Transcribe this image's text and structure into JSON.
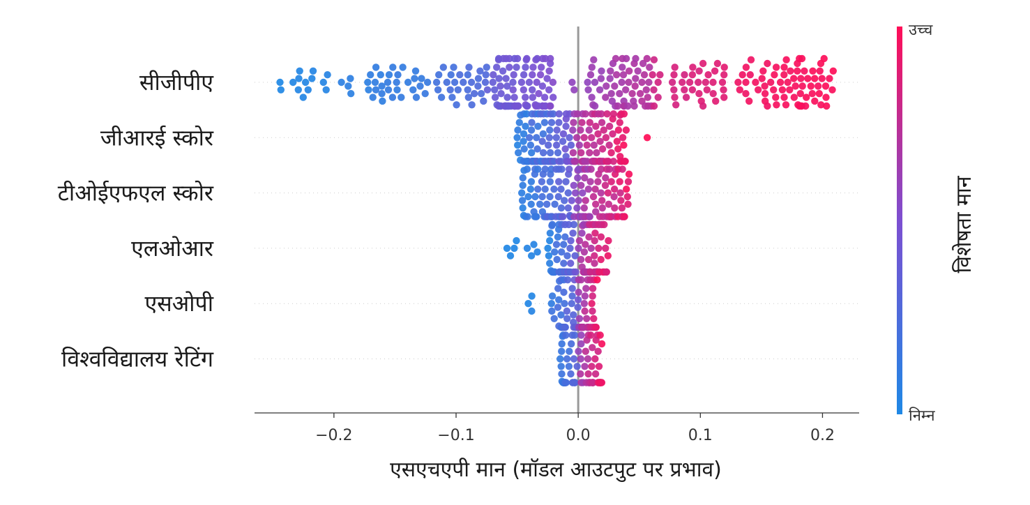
{
  "chart_data": {
    "type": "scatter",
    "subtype": "shap-beeswarm",
    "xlabel": "एसएचएपी मान (मॉडल आउटपुट पर प्रभाव)",
    "xlim": [
      -0.265,
      0.23
    ],
    "xticks": [
      -0.2,
      -0.1,
      0.0,
      0.1,
      0.2
    ],
    "xtick_labels": [
      "−0.2",
      "−0.1",
      "0.0",
      "0.1",
      "0.2"
    ],
    "grid": false,
    "features": [
      {
        "name": "सीजीपीए",
        "spread": 0.012,
        "segments": [
          {
            "from": -0.245,
            "to": -0.205,
            "n": 14,
            "c_from": 0.0,
            "c_to": 0.05
          },
          {
            "from": -0.195,
            "to": -0.12,
            "n": 34,
            "c_from": 0.05,
            "c_to": 0.15
          },
          {
            "from": -0.12,
            "to": -0.075,
            "n": 30,
            "c_from": 0.15,
            "c_to": 0.3
          },
          {
            "from": -0.075,
            "to": -0.02,
            "n": 90,
            "c_from": 0.35,
            "c_to": 0.55
          },
          {
            "from": -0.005,
            "to": 0.06,
            "n": 60,
            "c_from": 0.55,
            "c_to": 0.75
          },
          {
            "from": 0.06,
            "to": 0.12,
            "n": 40,
            "c_from": 0.8,
            "c_to": 0.9
          },
          {
            "from": 0.13,
            "to": 0.21,
            "n": 70,
            "c_from": 0.93,
            "c_to": 1.0
          }
        ]
      },
      {
        "name": "जीआरई स्कोर",
        "spread": 0.015,
        "segments": [
          {
            "from": -0.05,
            "to": -0.005,
            "n": 95,
            "c_from": 0.0,
            "c_to": 0.5
          },
          {
            "from": -0.005,
            "to": 0.04,
            "n": 90,
            "c_from": 0.6,
            "c_to": 1.0
          },
          {
            "from": 0.055,
            "to": 0.058,
            "n": 1,
            "c_from": 1.0,
            "c_to": 1.0
          }
        ]
      },
      {
        "name": "टीओईएफएल स्कोर",
        "spread": 0.015,
        "segments": [
          {
            "from": -0.048,
            "to": -0.005,
            "n": 70,
            "c_from": 0.0,
            "c_to": 0.45
          },
          {
            "from": -0.005,
            "to": 0.042,
            "n": 85,
            "c_from": 0.5,
            "c_to": 1.0
          }
        ]
      },
      {
        "name": "एलओआर",
        "spread": 0.016,
        "segments": [
          {
            "from": -0.06,
            "to": -0.03,
            "n": 8,
            "c_from": 0.0,
            "c_to": 0.05
          },
          {
            "from": -0.025,
            "to": -0.002,
            "n": 55,
            "c_from": 0.0,
            "c_to": 0.45
          },
          {
            "from": 0.0,
            "to": 0.025,
            "n": 60,
            "c_from": 0.55,
            "c_to": 1.0
          }
        ]
      },
      {
        "name": "एसओपी",
        "spread": 0.016,
        "segments": [
          {
            "from": -0.044,
            "to": -0.036,
            "n": 3,
            "c_from": 0.0,
            "c_to": 0.05
          },
          {
            "from": -0.022,
            "to": 0.0,
            "n": 45,
            "c_from": 0.05,
            "c_to": 0.45
          },
          {
            "from": 0.0,
            "to": 0.016,
            "n": 45,
            "c_from": 0.55,
            "c_to": 1.0
          }
        ]
      },
      {
        "name": "विश्वविद्यालय रेटिंग",
        "spread": 0.016,
        "segments": [
          {
            "from": -0.015,
            "to": 0.0,
            "n": 40,
            "c_from": 0.05,
            "c_to": 0.4
          },
          {
            "from": 0.0,
            "to": 0.02,
            "n": 45,
            "c_from": 0.55,
            "c_to": 1.0
          }
        ]
      }
    ],
    "colorbar": {
      "title": "विशेषता मान",
      "high_label": "उच्च",
      "low_label": "निम्न",
      "low_color": "#1e88e5",
      "mid_color": "#7c4fd1",
      "high_color": "#ff0d57"
    }
  }
}
